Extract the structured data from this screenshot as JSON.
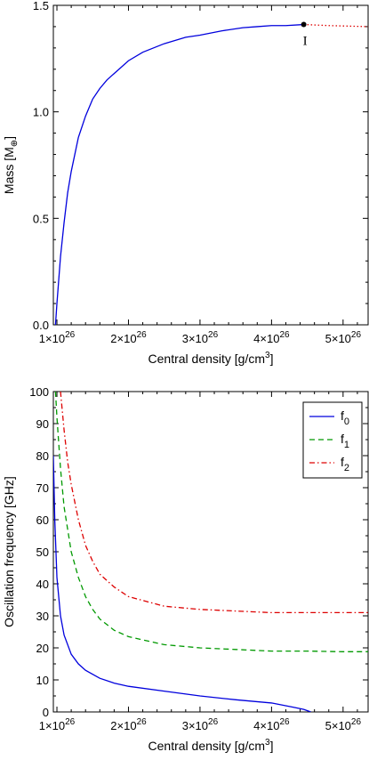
{
  "chart_data": [
    {
      "type": "line",
      "xlabel": "Central density  [g/cm³]",
      "ylabel": "Mass  [M⊕]",
      "xlim": [
        9.5e+25,
        5.35e+26
      ],
      "ylim": [
        0.0,
        1.5
      ],
      "x_ticks": [
        1e+26,
        2e+26,
        3e+26,
        4e+26,
        5e+26
      ],
      "x_tick_labels": [
        {
          "mant": "1×10",
          "exp": "26"
        },
        {
          "mant": "2×10",
          "exp": "26"
        },
        {
          "mant": "3×10",
          "exp": "26"
        },
        {
          "mant": "4×10",
          "exp": "26"
        },
        {
          "mant": "5×10",
          "exp": "26"
        }
      ],
      "y_ticks": [
        0.0,
        0.5,
        1.0,
        1.5
      ],
      "y_tick_labels": [
        "0.0",
        "0.5",
        "1.0",
        "1.5"
      ],
      "series": [
        {
          "style": "solid",
          "color": "#0000dd",
          "x": [
            9.8e+25,
            1e+26,
            1.05e+26,
            1.1e+26,
            1.15e+26,
            1.2e+26,
            1.3e+26,
            1.4e+26,
            1.5e+26,
            1.6e+26,
            1.7e+26,
            1.8e+26,
            2e+26,
            2.2e+26,
            2.5e+26,
            2.8e+26,
            3e+26,
            3.3e+26,
            3.6e+26,
            3.8e+26,
            4e+26,
            4.2e+26,
            4.45e+26
          ],
          "y": [
            0.0,
            0.1,
            0.32,
            0.48,
            0.62,
            0.72,
            0.88,
            0.98,
            1.06,
            1.11,
            1.15,
            1.18,
            1.24,
            1.28,
            1.32,
            1.35,
            1.36,
            1.38,
            1.395,
            1.4,
            1.405,
            1.405,
            1.41
          ]
        },
        {
          "style": "dotted",
          "color": "#dd0000",
          "x": [
            4.45e+26,
            4.8e+26,
            5.35e+26
          ],
          "y": [
            1.41,
            1.405,
            1.4
          ]
        }
      ],
      "annotations": [
        {
          "text": "I",
          "x": 4.45e+26,
          "y": 1.41,
          "marker": "dot"
        }
      ]
    },
    {
      "type": "line",
      "xlabel": "Central density  [g/cm³]",
      "ylabel": "Oscillation frequency  [GHz]",
      "xlim": [
        9.5e+25,
        5.35e+26
      ],
      "ylim": [
        0,
        100
      ],
      "x_ticks": [
        1e+26,
        2e+26,
        3e+26,
        4e+26,
        5e+26
      ],
      "x_tick_labels": [
        {
          "mant": "1×10",
          "exp": "26"
        },
        {
          "mant": "2×10",
          "exp": "26"
        },
        {
          "mant": "3×10",
          "exp": "26"
        },
        {
          "mant": "4×10",
          "exp": "26"
        },
        {
          "mant": "5×10",
          "exp": "26"
        }
      ],
      "y_ticks": [
        0,
        10,
        20,
        30,
        40,
        50,
        60,
        70,
        80,
        90,
        100
      ],
      "y_tick_labels": [
        "0",
        "10",
        "20",
        "30",
        "40",
        "50",
        "60",
        "70",
        "80",
        "90",
        "100"
      ],
      "legend": "top-right",
      "series": [
        {
          "name": "f",
          "sub": "0",
          "style": "solid",
          "color": "#0000dd",
          "x": [
            9.5e+25,
            9.7e+25,
            1e+26,
            1.05e+26,
            1.1e+26,
            1.2e+26,
            1.3e+26,
            1.4e+26,
            1.6e+26,
            1.8e+26,
            2e+26,
            2.5e+26,
            3e+26,
            3.5e+26,
            4e+26,
            4.3e+26,
            4.45e+26,
            4.55e+26
          ],
          "y": [
            80,
            60,
            42,
            30,
            24,
            18,
            15,
            13,
            10.5,
            9,
            8,
            6.5,
            5,
            3.8,
            2.8,
            1.5,
            0.8,
            0
          ]
        },
        {
          "name": "f",
          "sub": "1",
          "style": "dashed",
          "color": "#009900",
          "x": [
            9.8e+25,
            1e+26,
            1.05e+26,
            1.1e+26,
            1.2e+26,
            1.3e+26,
            1.4e+26,
            1.5e+26,
            1.6e+26,
            1.8e+26,
            2e+26,
            2.5e+26,
            3e+26,
            3.5e+26,
            4e+26,
            4.5e+26,
            5e+26,
            5.35e+26
          ],
          "y": [
            100,
            92,
            76,
            64,
            50,
            42,
            36,
            32,
            29,
            25.5,
            23.5,
            21,
            20,
            19.5,
            19,
            19,
            18.8,
            18.8
          ]
        },
        {
          "name": "f",
          "sub": "2",
          "style": "dashdot",
          "color": "#dd0000",
          "x": [
            1.05e+26,
            1.1e+26,
            1.15e+26,
            1.2e+26,
            1.3e+26,
            1.4e+26,
            1.5e+26,
            1.6e+26,
            1.8e+26,
            2e+26,
            2.5e+26,
            3e+26,
            3.5e+26,
            4e+26,
            4.5e+26,
            5e+26,
            5.35e+26
          ],
          "y": [
            100,
            88,
            78,
            71,
            60,
            52,
            47,
            43,
            39,
            36,
            33,
            32,
            31.5,
            31,
            31,
            31,
            31
          ]
        }
      ]
    }
  ]
}
